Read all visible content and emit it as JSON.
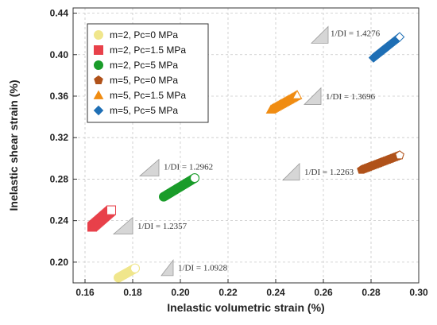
{
  "chart_data": {
    "type": "scatter",
    "xlabel": "Inelastic volumetric strain (%)",
    "ylabel": "Inelastic shear strain (%)",
    "xlim": [
      0.155,
      0.3
    ],
    "ylim": [
      0.18,
      0.445
    ],
    "x_ticks": [
      "0.16",
      "0.18",
      "0.20",
      "0.22",
      "0.24",
      "0.26",
      "0.28",
      "0.30"
    ],
    "y_ticks": [
      "0.20",
      "0.24",
      "0.28",
      "0.32",
      "0.36",
      "0.40",
      "0.44"
    ],
    "grid": true,
    "legend_position": "top-left",
    "series": [
      {
        "name": "m=2, Pc=0 MPa",
        "color": "#f0e68c",
        "marker": "circle-half",
        "start": [
          0.174,
          0.185
        ],
        "end": [
          0.181,
          0.194
        ]
      },
      {
        "name": "m=2, Pc=1.5 MPa",
        "color": "#e8414a",
        "marker": "square-half",
        "start": [
          0.163,
          0.234
        ],
        "end": [
          0.171,
          0.25
        ]
      },
      {
        "name": "m=2, Pc=5 MPa",
        "color": "#1a9c2a",
        "marker": "circle-half",
        "start": [
          0.193,
          0.263
        ],
        "end": [
          0.206,
          0.281
        ]
      },
      {
        "name": "m=5, Pc=0 MPa",
        "color": "#b0521a",
        "marker": "pentagon-half",
        "start": [
          0.276,
          0.289
        ],
        "end": [
          0.292,
          0.303
        ]
      },
      {
        "name": "m=5, Pc=1.5 MPa",
        "color": "#f08c12",
        "marker": "triangle-half",
        "start": [
          0.238,
          0.347
        ],
        "end": [
          0.249,
          0.361
        ]
      },
      {
        "name": "m=5, Pc=5 MPa",
        "color": "#1f6fb5",
        "marker": "diamond-half",
        "start": [
          0.281,
          0.397
        ],
        "end": [
          0.292,
          0.417
        ]
      }
    ],
    "annotations": [
      {
        "text": "1/DI = 1.0928",
        "tri": [
          [
            0.192,
            0.187
          ],
          [
            0.197,
            0.187
          ],
          [
            0.197,
            0.202
          ]
        ],
        "text_at": [
          0.199,
          0.192
        ]
      },
      {
        "text": "1/DI = 1.2357",
        "tri": [
          [
            0.172,
            0.227
          ],
          [
            0.18,
            0.227
          ],
          [
            0.18,
            0.243
          ]
        ],
        "text_at": [
          0.182,
          0.232
        ]
      },
      {
        "text": "1/DI = 1.2962",
        "tri": [
          [
            0.183,
            0.283
          ],
          [
            0.191,
            0.283
          ],
          [
            0.191,
            0.299
          ]
        ],
        "text_at": [
          0.193,
          0.289
        ]
      },
      {
        "text": "1/DI = 1.2263",
        "tri": [
          [
            0.243,
            0.279
          ],
          [
            0.25,
            0.279
          ],
          [
            0.25,
            0.295
          ]
        ],
        "text_at": [
          0.252,
          0.284
        ]
      },
      {
        "text": "1/DI = 1.3696",
        "tri": [
          [
            0.252,
            0.352
          ],
          [
            0.259,
            0.352
          ],
          [
            0.259,
            0.368
          ]
        ],
        "text_at": [
          0.261,
          0.357
        ]
      },
      {
        "text": "1/DI = 1.4276",
        "tri": [
          [
            0.255,
            0.411
          ],
          [
            0.262,
            0.411
          ],
          [
            0.262,
            0.427
          ]
        ],
        "text_at": [
          0.263,
          0.418
        ]
      }
    ]
  }
}
